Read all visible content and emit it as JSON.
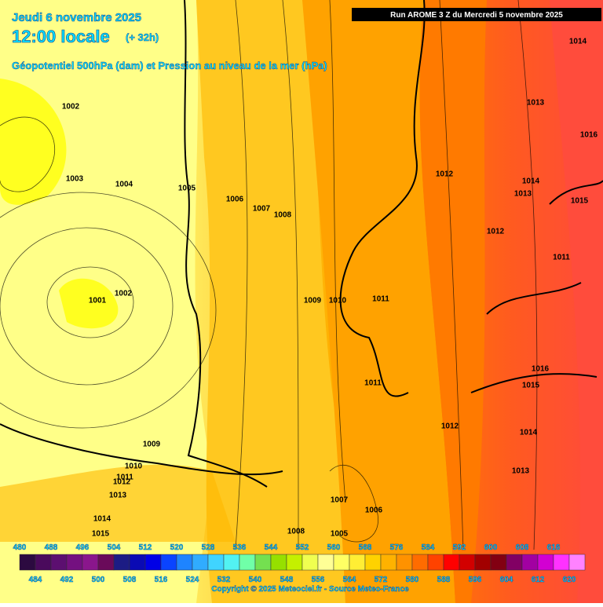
{
  "header": {
    "date": "Jeudi 6 novembre 2025",
    "time": "12:00 locale",
    "lead": "(+ 32h)",
    "subtitle": "Géopotentiel 500hPa (dam) et Pression au niveau de la mer (hPa)",
    "run": "Run AROME 3 Z du Mercredi 5 novembre 2025"
  },
  "isobars": [
    "1014",
    "1013",
    "1016",
    "1012",
    "1014",
    "1013",
    "1015",
    "1012",
    "1011",
    "1002",
    "1003",
    "1004",
    "1005",
    "1006",
    "1007",
    "1008",
    "1009",
    "1010",
    "1011",
    "1001",
    "1002",
    "1011",
    "1016",
    "1015",
    "1012",
    "1014",
    "1013",
    "1009",
    "1010",
    "1011",
    "1012",
    "1013",
    "1014",
    "1015",
    "1007",
    "1006",
    "1008",
    "1005"
  ],
  "legend": {
    "top_labels": [
      "480",
      "488",
      "496",
      "504",
      "512",
      "520",
      "528",
      "536",
      "544",
      "552",
      "560",
      "568",
      "576",
      "584",
      "592",
      "600",
      "608",
      "616"
    ],
    "bottom_labels": [
      "484",
      "492",
      "500",
      "508",
      "516",
      "524",
      "532",
      "540",
      "548",
      "556",
      "564",
      "572",
      "580",
      "588",
      "596",
      "604",
      "612",
      "620"
    ],
    "colors": [
      "#2c0a40",
      "#4a0a5c",
      "#5c0f70",
      "#741080",
      "#8a168c",
      "#6a0a5a",
      "#1c1c84",
      "#0a0ab4",
      "#0000e6",
      "#0a44ff",
      "#1e84ff",
      "#30acff",
      "#40d4ff",
      "#52f2f2",
      "#70ffa8",
      "#74e050",
      "#96e000",
      "#c4f000",
      "#f0ff50",
      "#ffff96",
      "#ffff64",
      "#ffee34",
      "#ffd200",
      "#ffb200",
      "#ff9200",
      "#ff6c00",
      "#ff4200",
      "#ff0000",
      "#d20000",
      "#a20000",
      "#820012",
      "#820064",
      "#a200a2",
      "#d200d2",
      "#ff32ff",
      "#ff82ff"
    ]
  },
  "footer": {
    "copyright": "Copyright © 2025 Meteociel.fr - Source Meteo-France"
  }
}
